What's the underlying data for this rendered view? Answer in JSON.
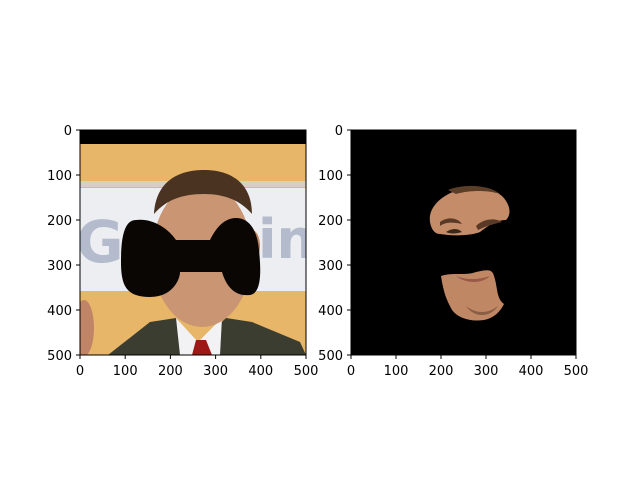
{
  "panels": [
    {
      "id": "left",
      "description_key": "masked-face-photo",
      "x_ticks": [
        "0",
        "100",
        "200",
        "300",
        "400",
        "500"
      ],
      "y_ticks": [
        "0",
        "100",
        "200",
        "300",
        "400",
        "500"
      ],
      "x_range": [
        0,
        500
      ],
      "y_range": [
        0,
        500
      ],
      "y_inverted": true
    },
    {
      "id": "right",
      "description_key": "extracted-face-region",
      "x_ticks": [
        "0",
        "100",
        "200",
        "300",
        "400",
        "500"
      ],
      "y_ticks": [
        "0",
        "100",
        "200",
        "300",
        "400",
        "500"
      ],
      "x_range": [
        0,
        500
      ],
      "y_range": [
        0,
        500
      ],
      "y_inverted": true
    }
  ],
  "colors": {
    "background": "#ffffff",
    "mask": "#0a0604",
    "banner": "#eceef2",
    "wall": "#e8b86a",
    "suit": "#3a3d30",
    "shirt": "#f2f2f4",
    "tie": "#a01818",
    "skin": "#c99572",
    "hair": "#4a3320"
  }
}
